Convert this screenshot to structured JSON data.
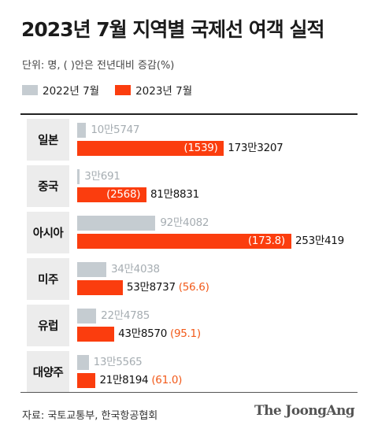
{
  "header": {
    "title": "2023년 7월 지역별 국제선 여객 실적",
    "unit_note": "단위: 명, ( )안은 전년대비 증감(%)"
  },
  "colors": {
    "prev": "#c5ccd1",
    "curr": "#fb3d0e",
    "change_text": "#f25a1a"
  },
  "footer": {
    "source": "자료: 국토교통부, 한국항공협회",
    "brand": "The JoongAng"
  },
  "chart_data": {
    "type": "bar",
    "orientation": "horizontal",
    "title": "2023년 7월 지역별 국제선 여객 실적",
    "unit": "단위: 명, ( )안은 전년대비 증감(%)",
    "legend_position": "top-left",
    "categories": [
      "일본",
      "중국",
      "아시아",
      "미주",
      "유럽",
      "대양주"
    ],
    "series": [
      {
        "name": "2022년 7월",
        "values": [
          105747,
          30691,
          924082,
          344038,
          224785,
          135565
        ],
        "labels": [
          "10만5747",
          "3만691",
          "92만4082",
          "34만4038",
          "22만4785",
          "13만5565"
        ]
      },
      {
        "name": "2023년 7월",
        "values": [
          1733207,
          818831,
          2530419,
          538737,
          438570,
          218194
        ],
        "labels": [
          "173만3207",
          "81만8831",
          "253만419",
          "53만8737",
          "43만8570",
          "21만8194"
        ]
      }
    ],
    "change_labels": [
      "(1539)",
      "(2568)",
      "(173.8)",
      "(56.6)",
      "(95.1)",
      "(61.0)"
    ],
    "change_percent": [
      1539,
      2568,
      173.8,
      56.6,
      95.1,
      61.0
    ],
    "change_label_position": [
      "inside",
      "inside",
      "inside",
      "outside",
      "outside",
      "outside"
    ],
    "xlim": [
      0,
      2530419
    ]
  }
}
